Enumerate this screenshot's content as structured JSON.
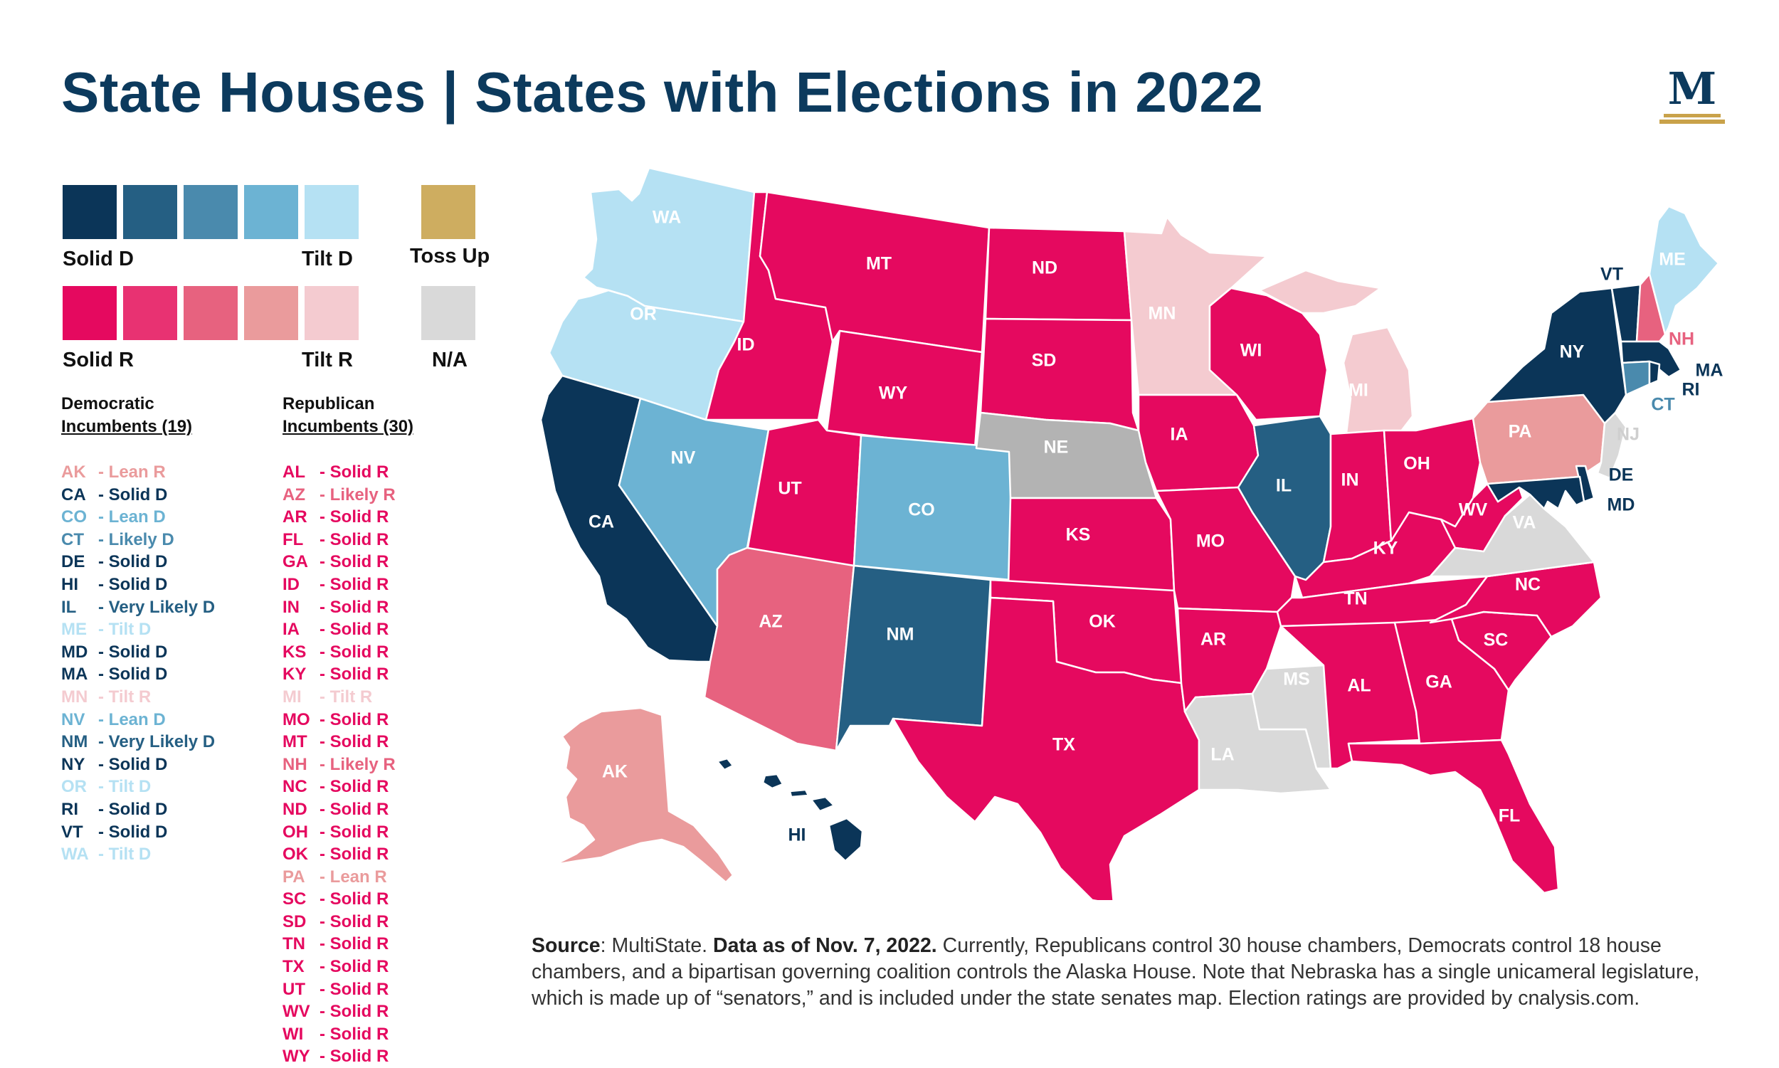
{
  "title": "State Houses | States with Elections in 2022",
  "colors": {
    "solid_d": "#0b3558",
    "very_likely_d": "#255f83",
    "likely_d": "#4a8aad",
    "lean_d": "#6cb3d3",
    "tilt_d": "#b5e1f3",
    "solid_r": "#e5095f",
    "likely_r": "#e83272",
    "lean_r_strong": "#e7627f",
    "lean_r": "#ea9b9c",
    "tilt_r": "#f4cbd0",
    "toss_up": "#cead60",
    "na": "#d9d9d9",
    "no_election": "#b3b3b3"
  },
  "legend": {
    "solid_d": "Solid D",
    "tilt_d": "Tilt D",
    "toss_up": "Toss Up",
    "solid_r": "Solid R",
    "tilt_r": "Tilt R",
    "na": "N/A"
  },
  "dem_header": {
    "line1": "Democratic",
    "line2": "Incumbents (19)"
  },
  "rep_header": {
    "line1": "Republican",
    "line2": "Incumbents (30)"
  },
  "dem_incumbents": [
    {
      "st": "AK",
      "rating": "- Lean R",
      "color": "#ea9b9c"
    },
    {
      "st": "CA",
      "rating": "- Solid D",
      "color": "#0b3558"
    },
    {
      "st": "CO",
      "rating": "- Lean D",
      "color": "#6cb3d3"
    },
    {
      "st": "CT",
      "rating": "- Likely D",
      "color": "#4a8aad"
    },
    {
      "st": "DE",
      "rating": "- Solid D",
      "color": "#0b3558"
    },
    {
      "st": "HI",
      "rating": "- Solid D",
      "color": "#0b3558"
    },
    {
      "st": "IL",
      "rating": "- Very Likely D",
      "color": "#255f83"
    },
    {
      "st": "ME",
      "rating": "- Tilt D",
      "color": "#b5e1f3"
    },
    {
      "st": "MD",
      "rating": "- Solid D",
      "color": "#0b3558"
    },
    {
      "st": "MA",
      "rating": "- Solid D",
      "color": "#0b3558"
    },
    {
      "st": "MN",
      "rating": "- Tilt R",
      "color": "#f4cbd0"
    },
    {
      "st": "NV",
      "rating": "- Lean D",
      "color": "#6cb3d3"
    },
    {
      "st": "NM",
      "rating": "- Very Likely D",
      "color": "#255f83"
    },
    {
      "st": "NY",
      "rating": "- Solid D",
      "color": "#0b3558"
    },
    {
      "st": "OR",
      "rating": "- Tilt D",
      "color": "#b5e1f3"
    },
    {
      "st": "RI",
      "rating": "- Solid D",
      "color": "#0b3558"
    },
    {
      "st": "VT",
      "rating": "- Solid D",
      "color": "#0b3558"
    },
    {
      "st": "WA",
      "rating": "- Tilt D",
      "color": "#b5e1f3"
    }
  ],
  "rep_incumbents": [
    {
      "st": "AL",
      "rating": "- Solid R",
      "color": "#e5095f"
    },
    {
      "st": "AZ",
      "rating": "- Likely R",
      "color": "#e7627f"
    },
    {
      "st": "AR",
      "rating": "- Solid R",
      "color": "#e5095f"
    },
    {
      "st": "FL",
      "rating": "- Solid R",
      "color": "#e5095f"
    },
    {
      "st": "GA",
      "rating": "- Solid R",
      "color": "#e5095f"
    },
    {
      "st": "ID",
      "rating": "- Solid R",
      "color": "#e5095f"
    },
    {
      "st": "IN",
      "rating": "- Solid R",
      "color": "#e5095f"
    },
    {
      "st": "IA",
      "rating": "- Solid R",
      "color": "#e5095f"
    },
    {
      "st": "KS",
      "rating": "- Solid R",
      "color": "#e5095f"
    },
    {
      "st": "KY",
      "rating": "- Solid R",
      "color": "#e5095f"
    },
    {
      "st": "MI",
      "rating": "- Tilt R",
      "color": "#f4cbd0"
    },
    {
      "st": "MO",
      "rating": "- Solid R",
      "color": "#e5095f"
    },
    {
      "st": "MT",
      "rating": "- Solid R",
      "color": "#e5095f"
    },
    {
      "st": "NH",
      "rating": "- Likely R",
      "color": "#e7627f"
    },
    {
      "st": "NC",
      "rating": "- Solid R",
      "color": "#e5095f"
    },
    {
      "st": "ND",
      "rating": "- Solid R",
      "color": "#e5095f"
    },
    {
      "st": "OH",
      "rating": "- Solid R",
      "color": "#e5095f"
    },
    {
      "st": "OK",
      "rating": "- Solid R",
      "color": "#e5095f"
    },
    {
      "st": "PA",
      "rating": "- Lean R",
      "color": "#ea9b9c"
    },
    {
      "st": "SC",
      "rating": "- Solid R",
      "color": "#e5095f"
    },
    {
      "st": "SD",
      "rating": "- Solid R",
      "color": "#e5095f"
    },
    {
      "st": "TN",
      "rating": "- Solid R",
      "color": "#e5095f"
    },
    {
      "st": "TX",
      "rating": "- Solid R",
      "color": "#e5095f"
    },
    {
      "st": "UT",
      "rating": "- Solid R",
      "color": "#e5095f"
    },
    {
      "st": "WV",
      "rating": "- Solid R",
      "color": "#e5095f"
    },
    {
      "st": "WI",
      "rating": "- Solid R",
      "color": "#e5095f"
    },
    {
      "st": "WY",
      "rating": "- Solid R",
      "color": "#e5095f"
    }
  ],
  "map_labels": {
    "WA": "WA",
    "OR": "OR",
    "CA": "CA",
    "ID": "ID",
    "NV": "NV",
    "MT": "MT",
    "WY": "WY",
    "UT": "UT",
    "AZ": "AZ",
    "CO": "CO",
    "NM": "NM",
    "ND": "ND",
    "SD": "SD",
    "NE": "NE",
    "KS": "KS",
    "OK": "OK",
    "TX": "TX",
    "MN": "MN",
    "IA": "IA",
    "MO": "MO",
    "AR": "AR",
    "LA": "LA",
    "WI": "WI",
    "IL": "IL",
    "MS": "MS",
    "MI": "MI",
    "IN": "IN",
    "KY": "KY",
    "TN": "TN",
    "AL": "AL",
    "OH": "OH",
    "GA": "GA",
    "FL": "FL",
    "SC": "SC",
    "NC": "NC",
    "WV": "WV",
    "VA": "VA",
    "PA": "PA",
    "NY": "NY",
    "VT": "VT",
    "NH": "NH",
    "ME": "ME",
    "MA": "MA",
    "RI": "RI",
    "CT": "CT",
    "NJ": "NJ",
    "DE": "DE",
    "MD": "MD",
    "AK": "AK",
    "HI": "HI"
  },
  "source": {
    "label": "Source",
    "text1": ": MultiState. ",
    "bold2": "Data as of Nov. 7, 2022.",
    "text3": " Currently, Republicans control 30 house chambers, Democrats control 18 house chambers, and a bipartisan governing coalition controls the Alaska House. Note that Nebraska has a single unicameral legislature, which is made up of “senators,” and is included under the state senates map.  Election ratings are provided by cnalysis.com."
  }
}
